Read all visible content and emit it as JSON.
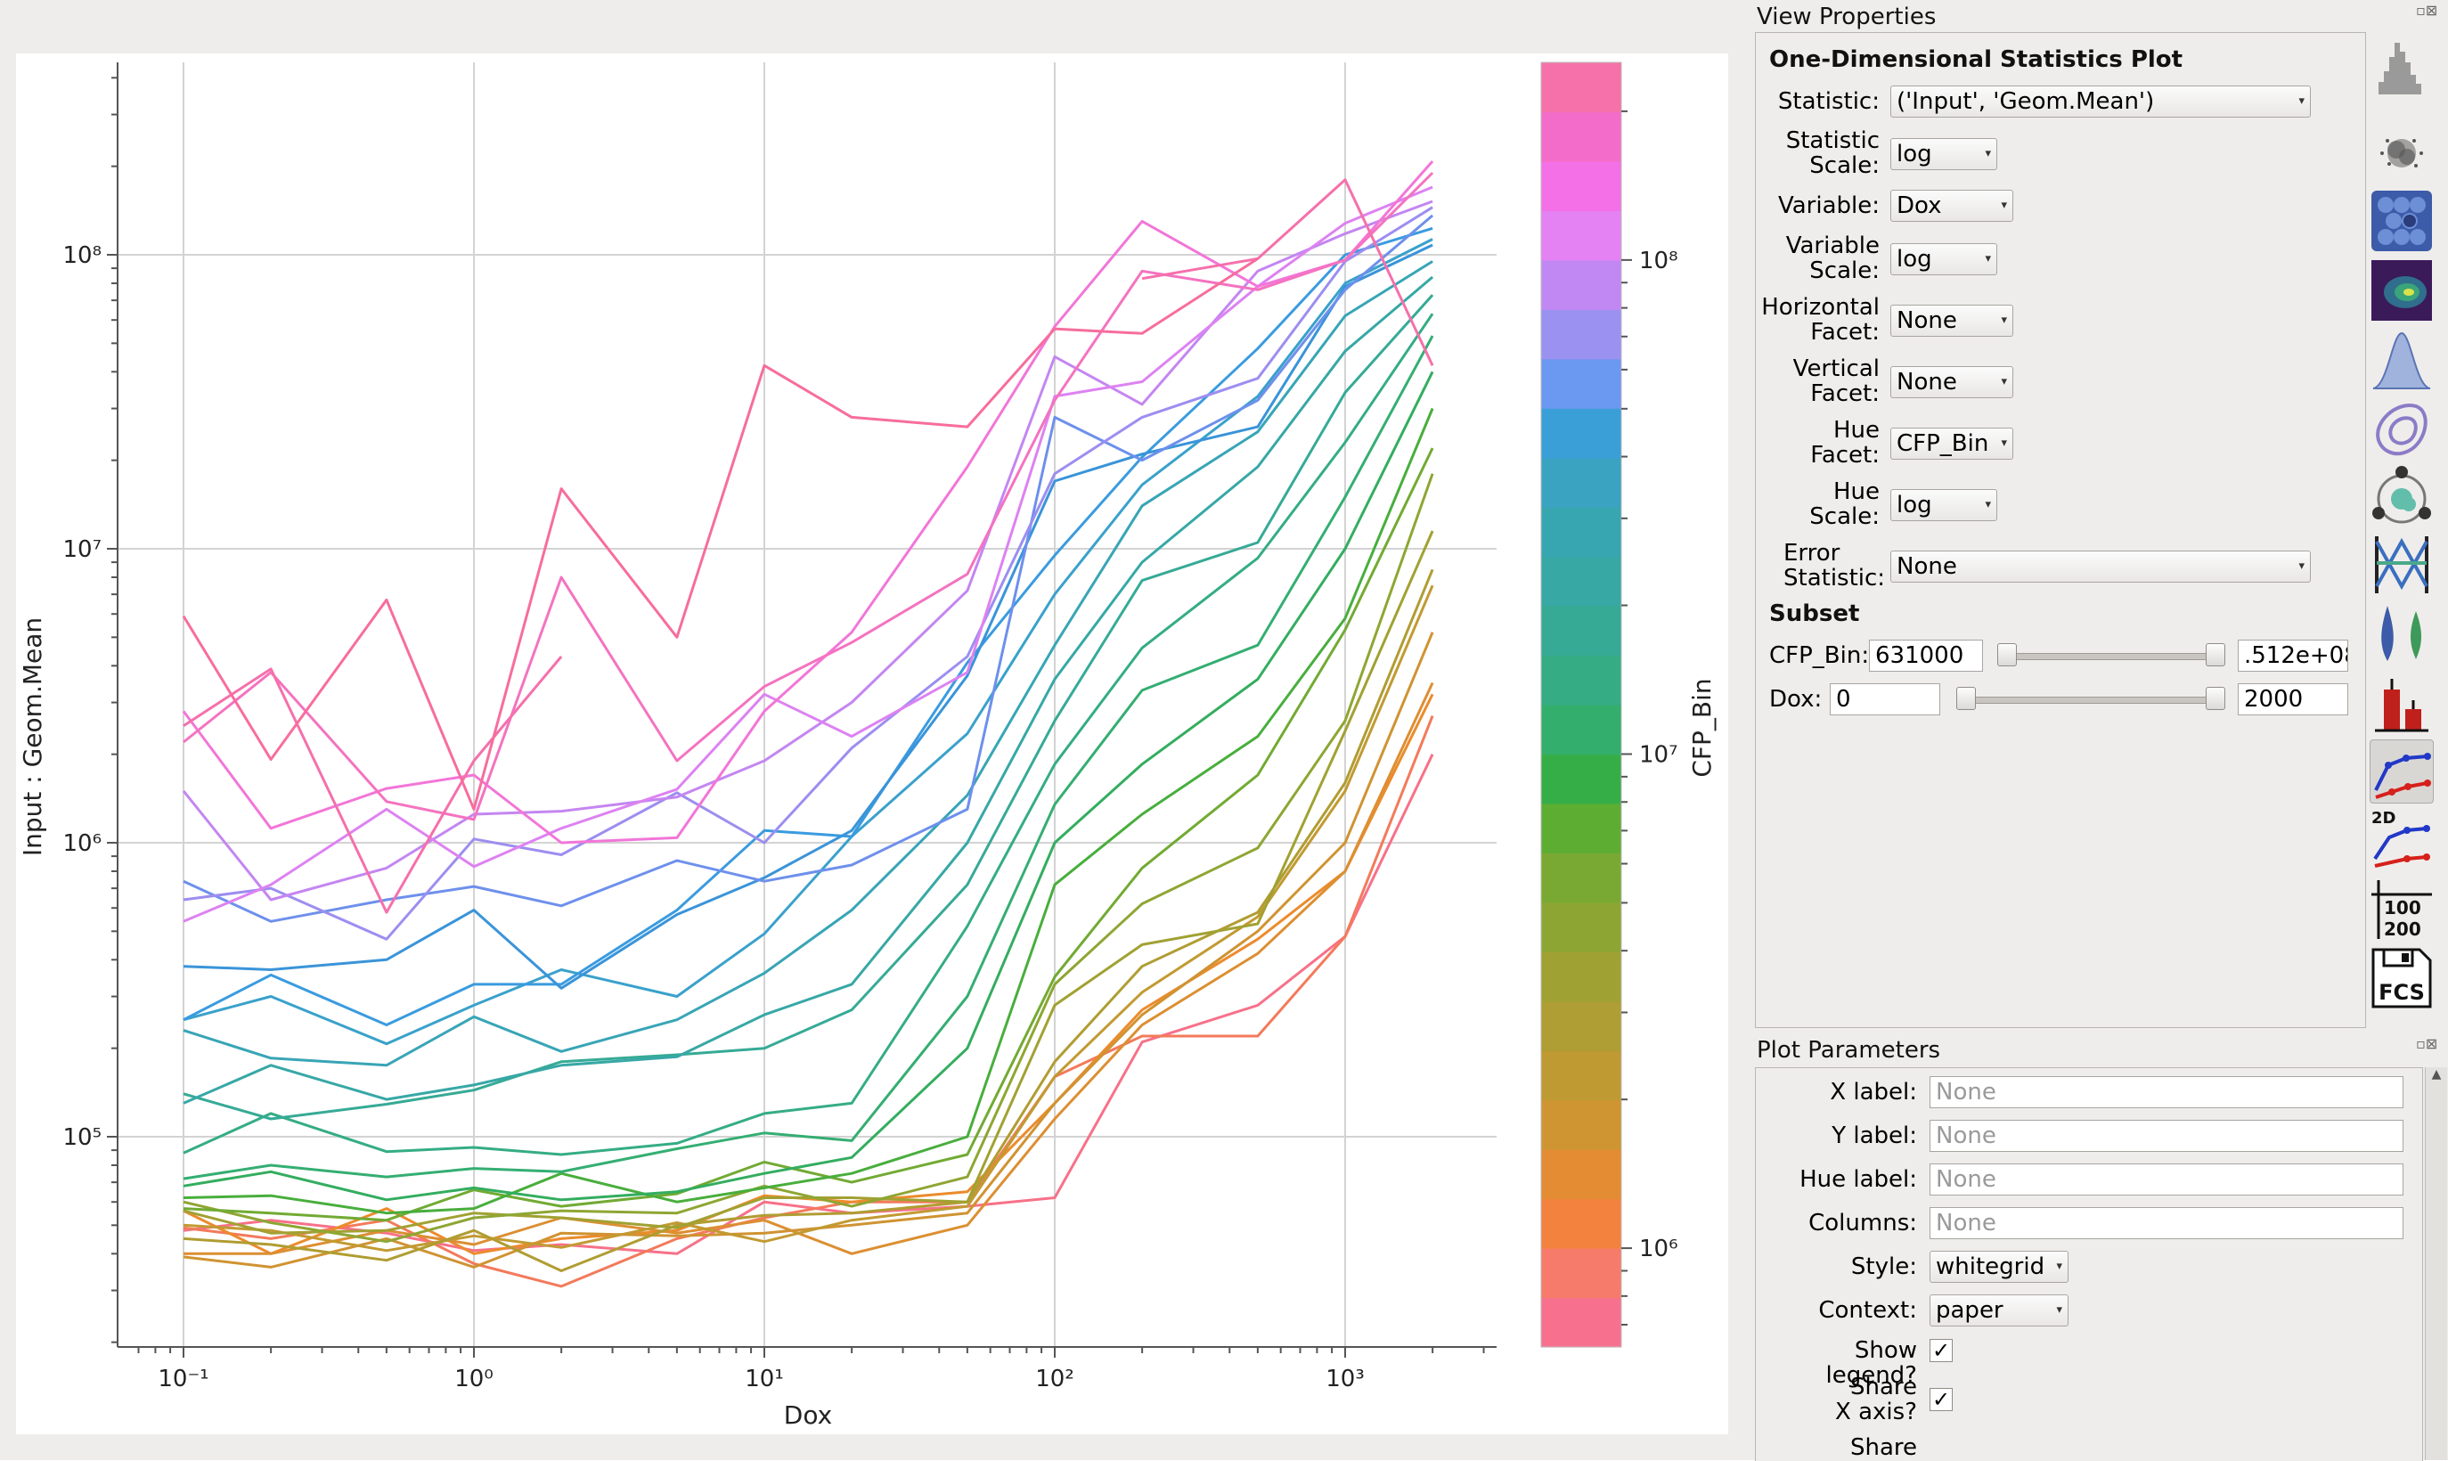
{
  "chart_data": {
    "type": "line",
    "x": [
      0.1,
      0.2,
      0.5,
      1,
      2,
      5,
      10,
      20,
      50,
      100,
      200,
      500,
      1000,
      2000
    ],
    "xlabel": "Dox",
    "ylabel": "Input : Geom.Mean",
    "xscale": "log",
    "yscale": "log",
    "xlim": [
      0.06,
      3500
    ],
    "ylim": [
      20000,
      420000000
    ],
    "xticks": [
      "10⁻¹",
      "10⁰",
      "10¹",
      "10²",
      "10³"
    ],
    "yticks": [
      "10⁵",
      "10⁶",
      "10⁷",
      "10⁸"
    ],
    "grid": true,
    "colorbar": {
      "label": "CFP_Bin",
      "scale": "log",
      "range": [
        631000,
        251200000
      ],
      "ticks": [
        "10⁶",
        "10⁷",
        "10⁸"
      ],
      "colors": [
        "#f7718e",
        "#f67b6a",
        "#f4823f",
        "#e38c33",
        "#cf9533",
        "#bf9a33",
        "#ae9e33",
        "#a0a133",
        "#8da633",
        "#7aa933",
        "#5ead33",
        "#36ae47",
        "#34ae6c",
        "#35ac84",
        "#36aa94",
        "#37a8a3",
        "#38a6b1",
        "#3aa3c1",
        "#3a9fd7",
        "#6b98f0",
        "#9b91f1",
        "#c188f3",
        "#e482f3",
        "#f470e6",
        "#f46cc9",
        "#f671a9"
      ]
    },
    "series": [
      {
        "color": "#f77189",
        "values": [
          48000,
          52000,
          47000,
          41000,
          43000,
          40000,
          60000,
          55000,
          58000,
          62000,
          210000,
          280000,
          480000,
          2000000
        ]
      },
      {
        "color": "#f37a5b",
        "values": [
          49000,
          45000,
          52000,
          37000,
          31000,
          45000,
          53000,
          60000,
          60000,
          160000,
          220000,
          220000,
          480000,
          2700000
        ]
      },
      {
        "color": "#ec8b2c",
        "values": [
          56000,
          40000,
          57000,
          40000,
          45000,
          48000,
          63000,
          60000,
          65000,
          130000,
          270000,
          470000,
          800000,
          3200000
        ]
      },
      {
        "color": "#dc8f32",
        "values": [
          40000,
          40000,
          48000,
          43000,
          53000,
          47000,
          52000,
          40000,
          50000,
          115000,
          240000,
          420000,
          800000,
          3500000
        ]
      },
      {
        "color": "#d09332",
        "values": [
          39000,
          36000,
          45000,
          36000,
          47000,
          46000,
          47000,
          50000,
          55000,
          130000,
          260000,
          500000,
          1000000,
          5200000
        ]
      },
      {
        "color": "#c29a32",
        "values": [
          50000,
          48000,
          41000,
          46000,
          42000,
          51000,
          44000,
          52000,
          58000,
          160000,
          310000,
          560000,
          1500000,
          7500000
        ]
      },
      {
        "color": "#b09d32",
        "values": [
          45000,
          43000,
          38000,
          48000,
          35000,
          50000,
          54000,
          55000,
          60000,
          180000,
          380000,
          580000,
          1600000,
          8500000
        ]
      },
      {
        "color": "#a1a133",
        "values": [
          56000,
          47000,
          48000,
          55000,
          53000,
          49000,
          62000,
          62000,
          60000,
          280000,
          450000,
          530000,
          2400000,
          11500000
        ]
      },
      {
        "color": "#8ea633",
        "values": [
          60000,
          51000,
          44000,
          53000,
          56000,
          55000,
          68000,
          58000,
          73000,
          330000,
          620000,
          960000,
          2600000,
          18000000
        ]
      },
      {
        "color": "#72aa33",
        "values": [
          57000,
          55000,
          52000,
          66000,
          58000,
          64000,
          82000,
          70000,
          87000,
          350000,
          820000,
          1700000,
          5300000,
          22000000
        ]
      },
      {
        "color": "#48ae3c",
        "values": [
          62000,
          63000,
          55000,
          57000,
          75000,
          60000,
          67000,
          75000,
          100000,
          720000,
          1250000,
          2300000,
          5800000,
          30000000
        ]
      },
      {
        "color": "#33ad5f",
        "values": [
          68000,
          76000,
          61000,
          67000,
          61000,
          65000,
          75000,
          85000,
          200000,
          1000000,
          1850000,
          3600000,
          10000000,
          40000000
        ]
      },
      {
        "color": "#34ae72",
        "values": [
          72000,
          80000,
          73000,
          78000,
          76000,
          91000,
          103000,
          97000,
          300000,
          1350000,
          3300000,
          4700000,
          15000000,
          53000000
        ]
      },
      {
        "color": "#35ac86",
        "values": [
          88000,
          120000,
          89000,
          92000,
          87000,
          95000,
          120000,
          130000,
          520000,
          1850000,
          4600000,
          9300000,
          23000000,
          63000000
        ]
      },
      {
        "color": "#36aa96",
        "values": [
          140000,
          115000,
          129000,
          144000,
          180000,
          190000,
          200000,
          270000,
          720000,
          2600000,
          7800000,
          10500000,
          34000000,
          73000000
        ]
      },
      {
        "color": "#37a8a6",
        "values": [
          130000,
          175000,
          134000,
          150000,
          175000,
          187000,
          260000,
          330000,
          1000000,
          3600000,
          9000000,
          19000000,
          47000000,
          84000000
        ]
      },
      {
        "color": "#38a5b6",
        "values": [
          230000,
          185000,
          175000,
          256000,
          195000,
          250000,
          360000,
          590000,
          1450000,
          4700000,
          14000000,
          25000000,
          62000000,
          95000000
        ]
      },
      {
        "color": "#3aa1cb",
        "values": [
          250000,
          300000,
          207000,
          280000,
          370000,
          300000,
          490000,
          1050000,
          2350000,
          7000000,
          16500000,
          33000000,
          80000000,
          113000000
        ]
      },
      {
        "color": "#3a9bdf",
        "values": [
          250000,
          355000,
          240000,
          330000,
          330000,
          590000,
          1100000,
          1050000,
          4100000,
          9500000,
          20500000,
          48000000,
          100000000,
          123000000
        ]
      },
      {
        "color": "#3a94d9",
        "values": [
          380000,
          370000,
          400000,
          590000,
          320000,
          570000,
          760000,
          1100000,
          3700000,
          17000000,
          21000000,
          26000000,
          78000000,
          108000000
        ]
      },
      {
        "color": "#6e90ec",
        "values": [
          740000,
          540000,
          640000,
          710000,
          610000,
          870000,
          740000,
          840000,
          1300000,
          28000000,
          20000000,
          32000000,
          76000000,
          136000000
        ]
      },
      {
        "color": "#9c8ef0",
        "values": [
          640000,
          700000,
          470000,
          1030000,
          910000,
          1480000,
          1000000,
          2100000,
          4300000,
          18000000,
          28000000,
          38000000,
          95000000,
          145000000
        ]
      },
      {
        "color": "#c486f1",
        "values": [
          1500000,
          640000,
          820000,
          1250000,
          1280000,
          1430000,
          1900000,
          3000000,
          7200000,
          45000000,
          31000000,
          88000000,
          118000000,
          152000000
        ]
      },
      {
        "color": "#dd82f2",
        "values": [
          540000,
          720000,
          1300000,
          830000,
          1120000,
          1520000,
          3200000,
          2300000,
          3800000,
          33000000,
          37000000,
          78000000,
          128000000,
          170000000
        ]
      },
      {
        "color": "#f276d8",
        "values": [
          2800000,
          1120000,
          1530000,
          1700000,
          1000000,
          1040000,
          2800000,
          5200000,
          19000000,
          57000000,
          130000000,
          78000000,
          96000000,
          208000000
        ]
      },
      {
        "color": "#f473c0",
        "values": [
          2200000,
          3800000,
          1380000,
          1200000,
          8000000,
          1900000,
          3400000,
          4800000,
          8200000,
          32000000,
          88000000,
          76000000,
          96000000,
          190000000
        ]
      },
      {
        "color": "#f570ab",
        "values": [
          2500000,
          3900000,
          580000,
          1900000,
          4300000,
          null,
          null,
          null,
          null,
          null,
          83000000,
          97000000,
          180000000,
          42000000
        ]
      },
      {
        "color": "#f76d9d",
        "values": [
          5900000,
          1920000,
          6700000,
          1300000,
          16000000,
          5000000,
          42000000,
          28000000,
          26000000,
          56000000,
          54000000,
          97000000,
          null,
          null
        ]
      }
    ]
  },
  "view_properties": {
    "title": "View Properties",
    "plot_title": "One-Dimensional Statistics Plot",
    "statistic_label": "Statistic:",
    "statistic_value": "('Input', 'Geom.Mean')",
    "statistic_scale_label_1": "Statistic",
    "statistic_scale_label_2": "Scale:",
    "statistic_scale_value": "log",
    "variable_label": "Variable:",
    "variable_value": "Dox",
    "variable_scale_label_1": "Variable",
    "variable_scale_label_2": "Scale:",
    "variable_scale_value": "log",
    "hfacet_label_1": "Horizontal",
    "hfacet_label_2": "Facet:",
    "hfacet_value": "None",
    "vfacet_label_1": "Vertical",
    "vfacet_label_2": "Facet:",
    "vfacet_value": "None",
    "huefacet_label_1": "Hue",
    "huefacet_label_2": "Facet:",
    "huefacet_value": "CFP_Bin",
    "huescale_label_1": "Hue",
    "huescale_label_2": "Scale:",
    "huescale_value": "log",
    "error_label_1": "Error",
    "error_label_2": "Statistic:",
    "error_value": "None",
    "subset_title": "Subset",
    "cfp_label": "CFP_Bin:",
    "cfp_min": "631000",
    "cfp_max": ".512e+08",
    "dox_label": "Dox:",
    "dox_min": "0",
    "dox_max": "2000"
  },
  "plot_parameters": {
    "title": "Plot Parameters",
    "xlabel_label": "X label:",
    "xlabel_placeholder": "None",
    "ylabel_label": "Y label:",
    "ylabel_placeholder": "None",
    "huelabel_label": "Hue label:",
    "huelabel_placeholder": "None",
    "columns_label": "Columns:",
    "columns_placeholder": "None",
    "style_label": "Style:",
    "style_value": "whitegrid",
    "context_label": "Context:",
    "context_value": "paper",
    "legend_label": "Show legend?",
    "legend_checked": "✓",
    "sharex_label_1": "Share",
    "sharex_label_2": "X axis?",
    "sharex_checked": "✓",
    "sharey_label_1": "Share"
  },
  "toolbar": {
    "twod_label": "2D",
    "range_label_1": "100",
    "range_label_2": "200",
    "fcs_label": "FCS"
  }
}
